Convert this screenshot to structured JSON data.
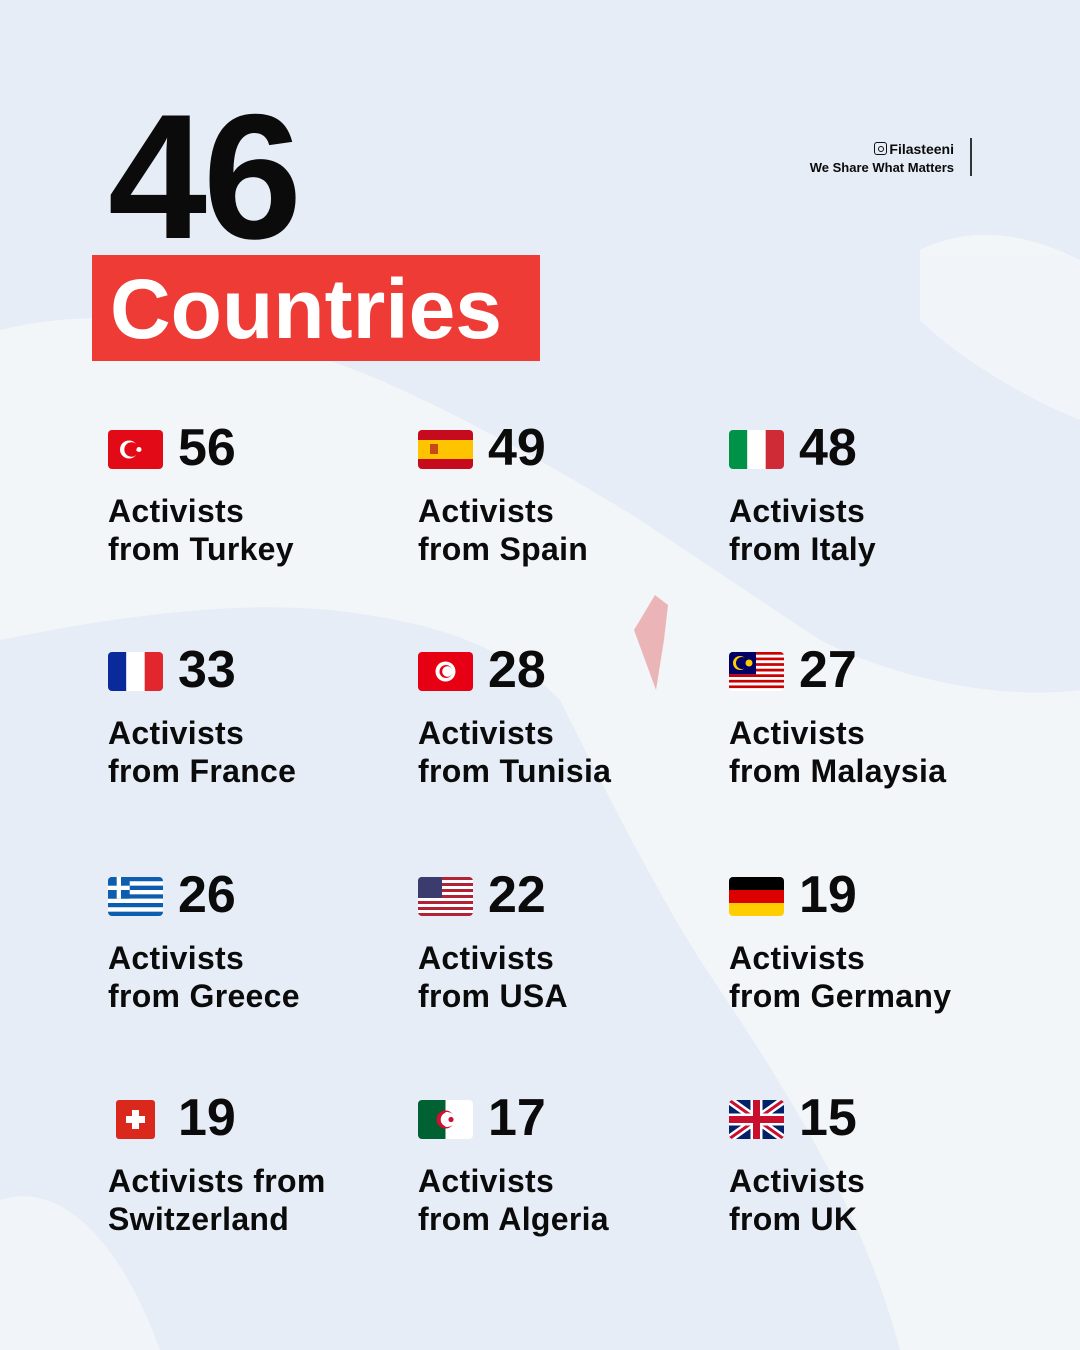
{
  "headline": {
    "number": "46",
    "label": "Countries",
    "accent": "#ee3b36"
  },
  "brand": {
    "handle": "Filasteeni",
    "tagline": "We Share What Matters"
  },
  "items": [
    {
      "flag": "turkey",
      "count": "56",
      "line1": "Activists",
      "line2": "from Turkey"
    },
    {
      "flag": "spain",
      "count": "49",
      "line1": "Activists",
      "line2": "from Spain"
    },
    {
      "flag": "italy",
      "count": "48",
      "line1": "Activists",
      "line2": "from Italy"
    },
    {
      "flag": "france",
      "count": "33",
      "line1": "Activists",
      "line2": "from France"
    },
    {
      "flag": "tunisia",
      "count": "28",
      "line1": "Activists",
      "line2": "from Tunisia"
    },
    {
      "flag": "malaysia",
      "count": "27",
      "line1": "Activists",
      "line2": "from Malaysia"
    },
    {
      "flag": "greece",
      "count": "26",
      "line1": "Activists",
      "line2": "from Greece"
    },
    {
      "flag": "usa",
      "count": "22",
      "line1": "Activists",
      "line2": "from USA"
    },
    {
      "flag": "germany",
      "count": "19",
      "line1": "Activists",
      "line2": "from Germany"
    },
    {
      "flag": "switzerland",
      "count": "19",
      "line1": "Activists from",
      "line2": "Switzerland"
    },
    {
      "flag": "algeria",
      "count": "17",
      "line1": "Activists",
      "line2": "from Algeria"
    },
    {
      "flag": "uk",
      "count": "15",
      "line1": "Activists",
      "line2": "from UK"
    }
  ]
}
